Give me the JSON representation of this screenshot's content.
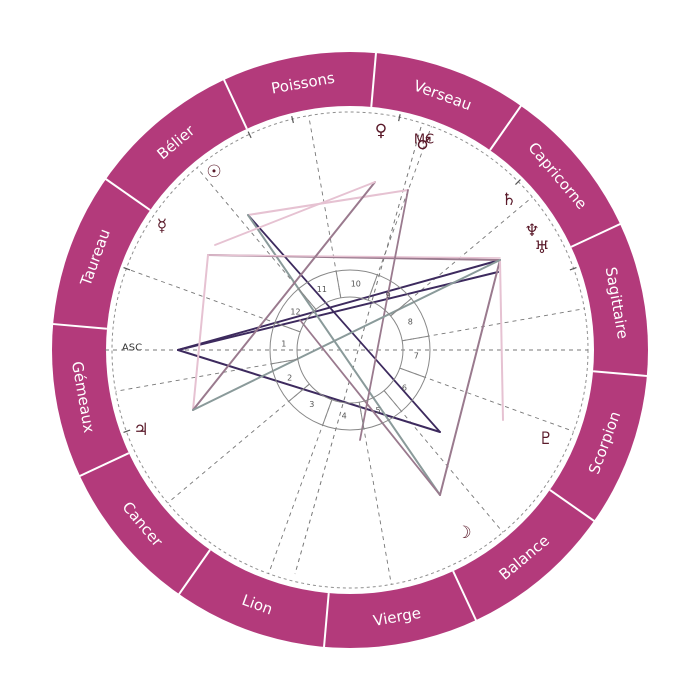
{
  "colors": {
    "zodiac_ring": "#b33a7b",
    "ring_separator": "#ffffff",
    "cusp_line": "#777777",
    "inner_circle": "#888888",
    "glyph": "#5a1a2a",
    "aspect_dark": "#3d2a5e",
    "aspect_mauve": "#9a7a8e",
    "aspect_pink": "#e6c2d2",
    "aspect_gray": "#8a9a9a"
  },
  "zodiac_signs": [
    {
      "name": "Poissons"
    },
    {
      "name": "Verseau"
    },
    {
      "name": "Capricorne"
    },
    {
      "name": "Sagittaire"
    },
    {
      "name": "Scorpion"
    },
    {
      "name": "Balance"
    },
    {
      "name": "Vierge"
    },
    {
      "name": "Lion"
    },
    {
      "name": "Cancer"
    },
    {
      "name": "Gémeaux"
    },
    {
      "name": "Taureau"
    },
    {
      "name": "Bélier"
    }
  ],
  "houses": [
    "1",
    "2",
    "3",
    "4",
    "5",
    "6",
    "7",
    "8",
    "9",
    "10",
    "11",
    "12"
  ],
  "angles": {
    "asc": "ASC",
    "mc": "MC"
  },
  "planets": [
    {
      "name": "sun",
      "icon": "sun-icon",
      "glyph": "☉"
    },
    {
      "name": "venus",
      "icon": "venus-icon",
      "glyph": "♀"
    },
    {
      "name": "mercury",
      "icon": "mercury-icon",
      "glyph": "☿"
    },
    {
      "name": "mars",
      "icon": "mars-icon",
      "glyph": "♂"
    },
    {
      "name": "saturn",
      "icon": "saturn-icon",
      "glyph": "♄"
    },
    {
      "name": "neptune",
      "icon": "neptune-icon",
      "glyph": "♆"
    },
    {
      "name": "uranus",
      "icon": "uranus-icon",
      "glyph": "♅"
    },
    {
      "name": "jupiter",
      "icon": "jupiter-icon",
      "glyph": "♃"
    },
    {
      "name": "pluto",
      "icon": "pluto-icon",
      "glyph": "♇"
    },
    {
      "name": "moon",
      "icon": "moon-icon",
      "glyph": "☽"
    }
  ]
}
